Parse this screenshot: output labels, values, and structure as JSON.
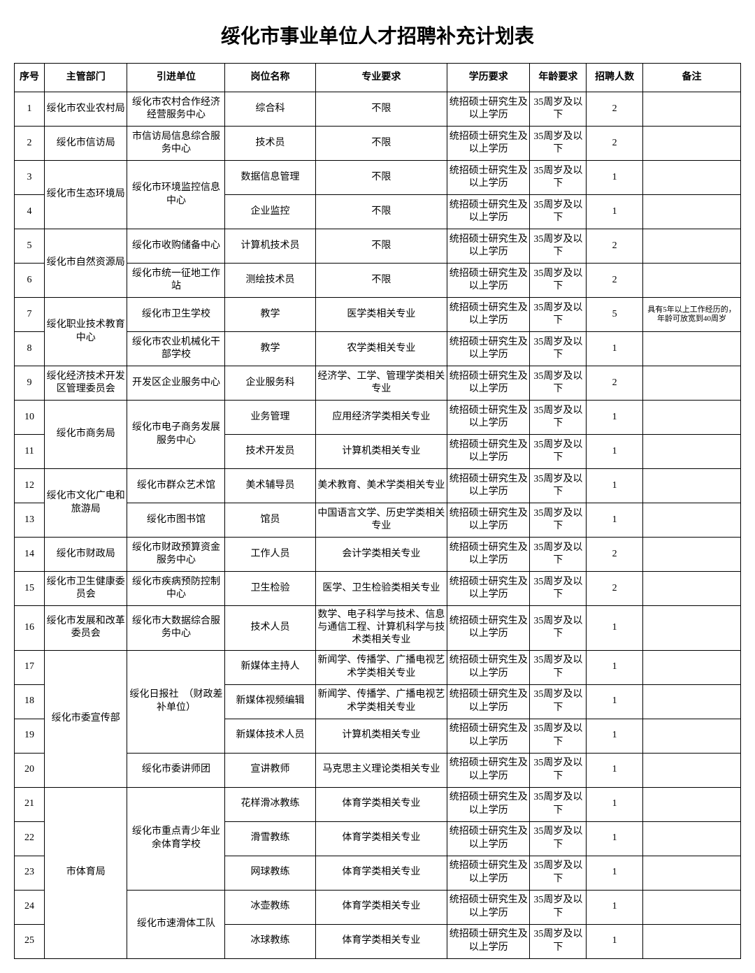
{
  "title": "绥化市事业单位人才招聘补充计划表",
  "headers": [
    "序号",
    "主管部门",
    "引进单位",
    "岗位名称",
    "专业要求",
    "学历要求",
    "年龄要求",
    "招聘人数",
    "备注"
  ],
  "edu_default": "统招硕士研究生及以上学历",
  "age_default": "35周岁及以下",
  "groups": [
    {
      "dept": "绥化市农业农村局",
      "units": [
        {
          "unit": "绥化市农村合作经济经营服务中心",
          "rows": [
            {
              "seq": 1,
              "pos": "综合科",
              "major": "不限",
              "count": 2
            }
          ]
        }
      ]
    },
    {
      "dept": "绥化市信访局",
      "units": [
        {
          "unit": "市信访局信息综合服务中心",
          "rows": [
            {
              "seq": 2,
              "pos": "技术员",
              "major": "不限",
              "count": 2
            }
          ]
        }
      ]
    },
    {
      "dept": "绥化市生态环境局",
      "units": [
        {
          "unit": "绥化市环境监控信息中心",
          "rows": [
            {
              "seq": 3,
              "pos": "数据信息管理",
              "major": "不限",
              "count": 1
            },
            {
              "seq": 4,
              "pos": "企业监控",
              "major": "不限",
              "count": 1
            }
          ]
        }
      ]
    },
    {
      "dept": "绥化市自然资源局",
      "units": [
        {
          "unit": "绥化市收购储备中心",
          "rows": [
            {
              "seq": 5,
              "pos": "计算机技术员",
              "major": "不限",
              "count": 2
            }
          ]
        },
        {
          "unit": "绥化市统一征地工作站",
          "rows": [
            {
              "seq": 6,
              "pos": "测绘技术员",
              "major": "不限",
              "count": 2
            }
          ]
        }
      ]
    },
    {
      "dept": "绥化职业技术教育中心",
      "units": [
        {
          "unit": "绥化市卫生学校",
          "rows": [
            {
              "seq": 7,
              "pos": "教学",
              "major": "医学类相关专业",
              "count": 5,
              "note": "具有5年以上工作经历的，年龄可放宽到40周岁"
            }
          ]
        },
        {
          "unit": "绥化市农业机械化干部学校",
          "rows": [
            {
              "seq": 8,
              "pos": "教学",
              "major": "农学类相关专业",
              "count": 1
            }
          ]
        }
      ]
    },
    {
      "dept": "绥化经济技术开发区管理委员会",
      "units": [
        {
          "unit": "开发区企业服务中心",
          "rows": [
            {
              "seq": 9,
              "pos": "企业服务科",
              "major": "经济学、工学、管理学类相关专业",
              "count": 2
            }
          ]
        }
      ]
    },
    {
      "dept": "绥化市商务局",
      "units": [
        {
          "unit": "绥化市电子商务发展服务中心",
          "rows": [
            {
              "seq": 10,
              "pos": "业务管理",
              "major": "应用经济学类相关专业",
              "count": 1
            },
            {
              "seq": 11,
              "pos": "技术开发员",
              "major": "计算机类相关专业",
              "count": 1
            }
          ]
        }
      ]
    },
    {
      "dept": "绥化市文化广电和旅游局",
      "units": [
        {
          "unit": "绥化市群众艺术馆",
          "rows": [
            {
              "seq": 12,
              "pos": "美术辅导员",
              "major": "美术教育、美术学类相关专业",
              "count": 1
            }
          ]
        },
        {
          "unit": "绥化市图书馆",
          "rows": [
            {
              "seq": 13,
              "pos": "馆员",
              "major": "中国语言文学、历史学类相关专业",
              "count": 1
            }
          ]
        }
      ]
    },
    {
      "dept": "绥化市财政局",
      "units": [
        {
          "unit": "绥化市财政预算资金服务中心",
          "rows": [
            {
              "seq": 14,
              "pos": "工作人员",
              "major": "会计学类相关专业",
              "count": 2
            }
          ]
        }
      ]
    },
    {
      "dept": "绥化市卫生健康委员会",
      "units": [
        {
          "unit": "绥化市疾病预防控制中心",
          "rows": [
            {
              "seq": 15,
              "pos": "卫生检验",
              "major": "医学、卫生检验类相关专业",
              "count": 2
            }
          ]
        }
      ]
    },
    {
      "dept": "绥化市发展和改革委员会",
      "units": [
        {
          "unit": "绥化市大数据综合服务中心",
          "rows": [
            {
              "seq": 16,
              "pos": "技术人员",
              "major": "数学、电子科学与技术、信息与通信工程、计算机科学与技术类相关专业",
              "count": 1
            }
          ]
        }
      ]
    },
    {
      "dept": "绥化市委宣传部",
      "units": [
        {
          "unit": "绥化日报社　（财政差补单位）",
          "rows": [
            {
              "seq": 17,
              "pos": "新媒体主持人",
              "major": "新闻学、传播学、广播电视艺术学类相关专业",
              "count": 1
            },
            {
              "seq": 18,
              "pos": "新媒体视频编辑",
              "major": "新闻学、传播学、广播电视艺术学类相关专业",
              "count": 1
            },
            {
              "seq": 19,
              "pos": "新媒体技术人员",
              "major": "计算机类相关专业",
              "count": 1
            }
          ]
        },
        {
          "unit": "绥化市委讲师团",
          "rows": [
            {
              "seq": 20,
              "pos": "宣讲教师",
              "major": "马克思主义理论类相关专业",
              "count": 1
            }
          ]
        }
      ]
    },
    {
      "dept": "市体育局",
      "units": [
        {
          "unit": "绥化市重点青少年业余体育学校",
          "rows": [
            {
              "seq": 21,
              "pos": "花样滑冰教练",
              "major": "体育学类相关专业",
              "count": 1
            },
            {
              "seq": 22,
              "pos": "滑雪教练",
              "major": "体育学类相关专业",
              "count": 1
            },
            {
              "seq": 23,
              "pos": "网球教练",
              "major": "体育学类相关专业",
              "count": 1
            }
          ]
        },
        {
          "unit": "绥化市速滑体工队",
          "rows": [
            {
              "seq": 24,
              "pos": "冰壶教练",
              "major": "体育学类相关专业",
              "count": 1
            },
            {
              "seq": 25,
              "pos": "冰球教练",
              "major": "体育学类相关专业",
              "count": 1
            }
          ]
        }
      ]
    }
  ]
}
